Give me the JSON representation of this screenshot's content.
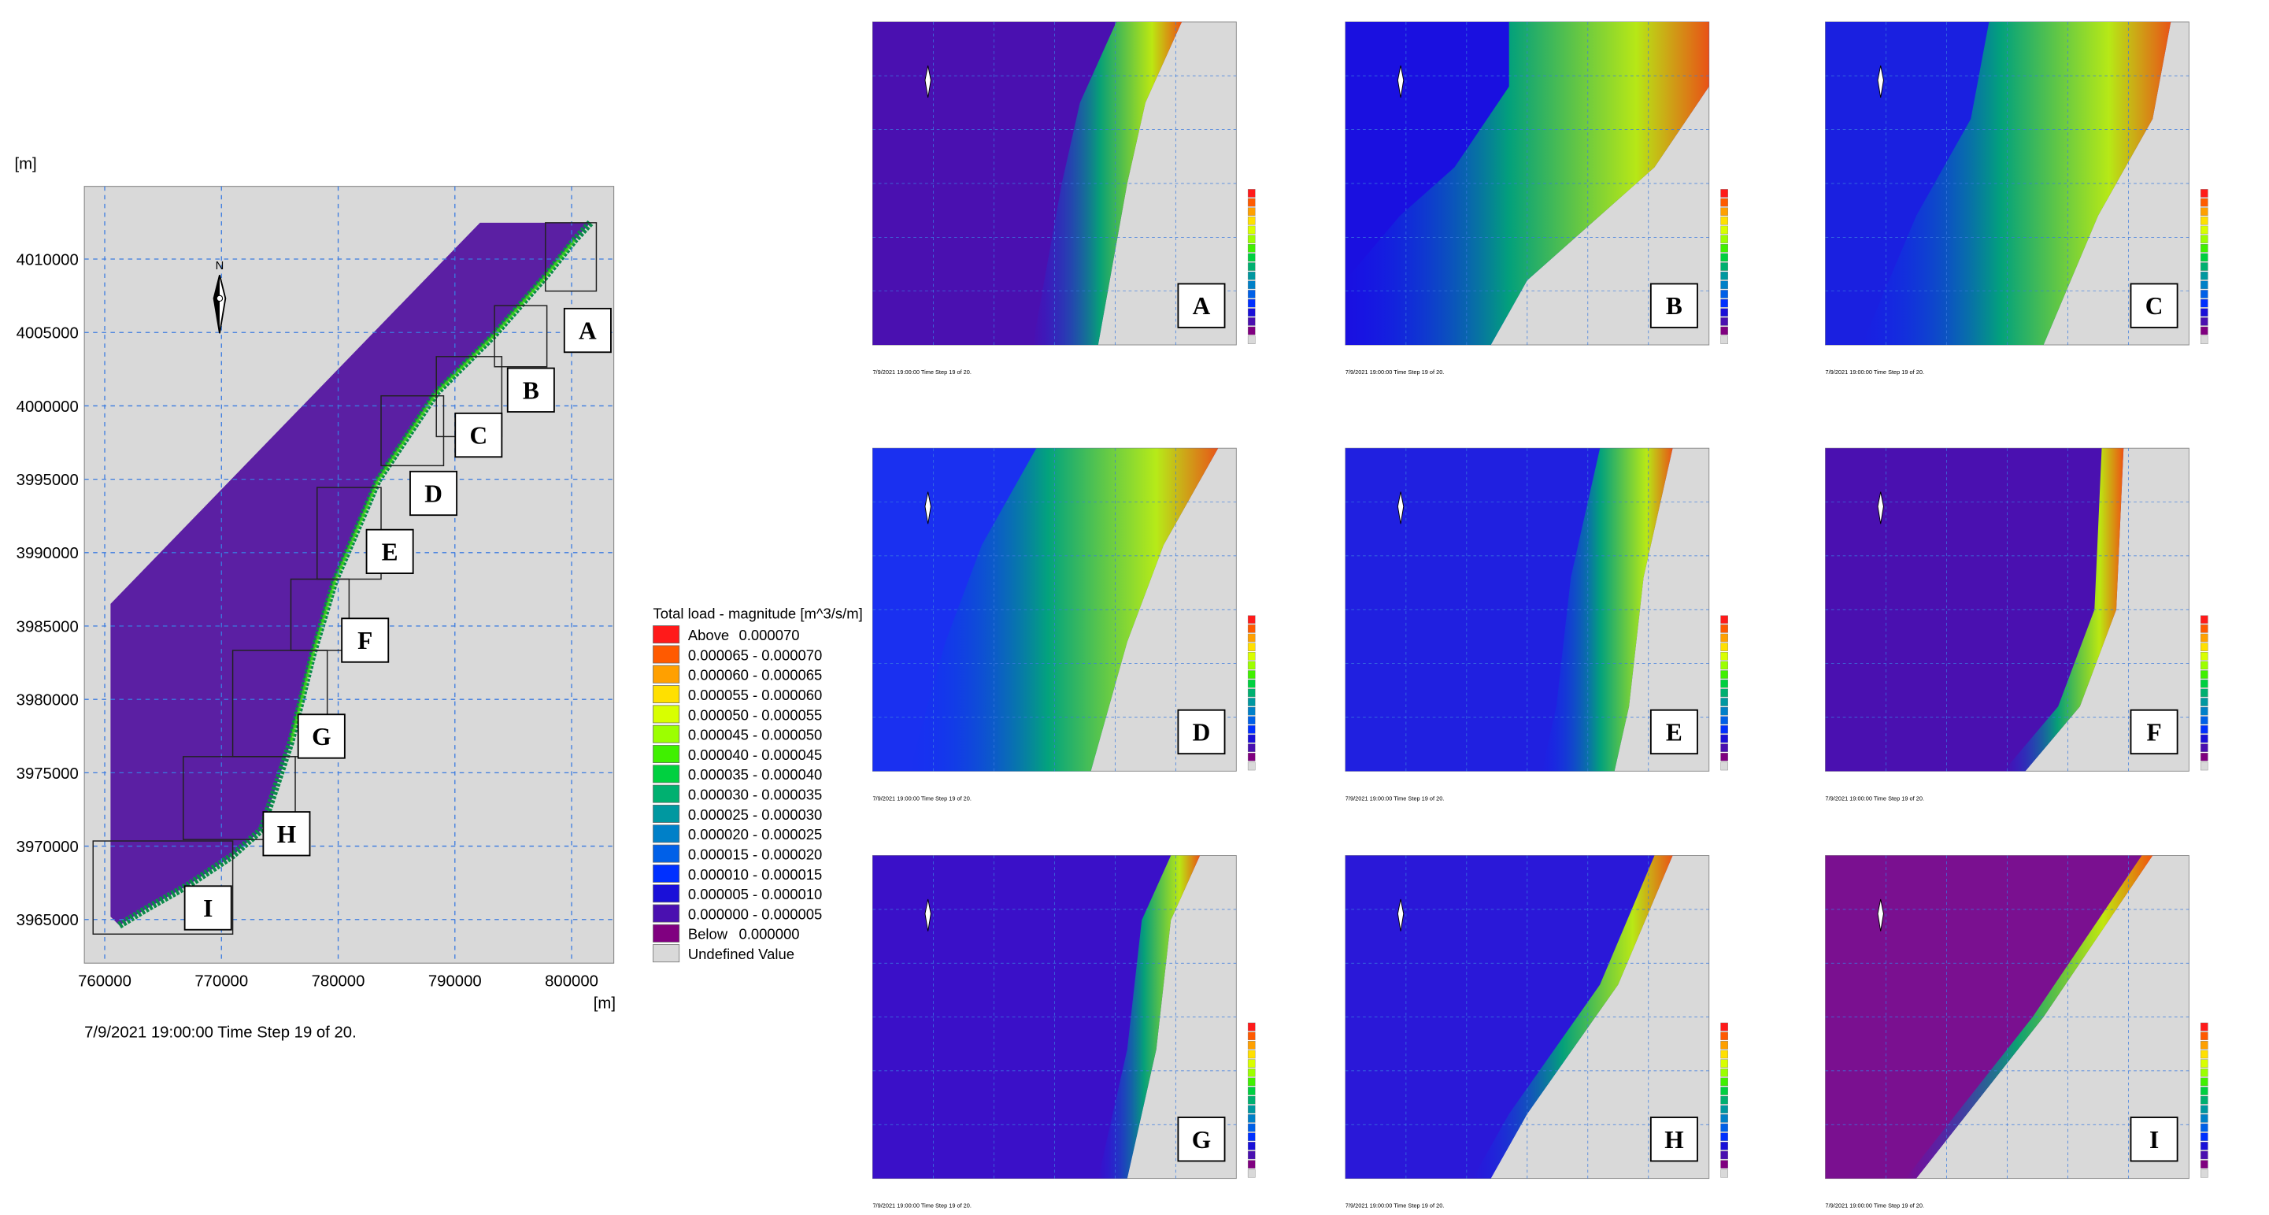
{
  "main_map": {
    "y_unit": "[m]",
    "x_unit": "[m]",
    "yticks": [
      4010000,
      4005000,
      4000000,
      3995000,
      3990000,
      3985000,
      3980000,
      3975000,
      3970000,
      3965000
    ],
    "xticks": [
      760000,
      770000,
      780000,
      790000,
      800000
    ],
    "boxes": [
      "A",
      "B",
      "C",
      "D",
      "E",
      "F",
      "G",
      "H",
      "I"
    ],
    "timestamp": "7/9/2021 19:00:00  Time Step 19 of 20."
  },
  "legend": {
    "title": "Total load - magnitude [m^3/s/m]",
    "items": [
      {
        "text": "Above",
        "value": "0.000070",
        "color": "#ff1a1a"
      },
      {
        "text": "0.000065 - 0.000070",
        "color": "#ff5a00"
      },
      {
        "text": "0.000060 - 0.000065",
        "color": "#ffa000"
      },
      {
        "text": "0.000055 - 0.000060",
        "color": "#ffe000"
      },
      {
        "text": "0.000050 - 0.000055",
        "color": "#d8ff00"
      },
      {
        "text": "0.000045 - 0.000050",
        "color": "#9cff00"
      },
      {
        "text": "0.000040 - 0.000045",
        "color": "#40f000"
      },
      {
        "text": "0.000035 - 0.000040",
        "color": "#00d040"
      },
      {
        "text": "0.000030 - 0.000035",
        "color": "#00b070"
      },
      {
        "text": "0.000025 - 0.000030",
        "color": "#0098a0"
      },
      {
        "text": "0.000020 - 0.000025",
        "color": "#0080c8"
      },
      {
        "text": "0.000015 - 0.000020",
        "color": "#0060e8"
      },
      {
        "text": "0.000010 - 0.000015",
        "color": "#0030ff"
      },
      {
        "text": "0.000005 - 0.000010",
        "color": "#1a10d8"
      },
      {
        "text": "0.000000 - 0.000005",
        "color": "#4a10b0"
      },
      {
        "text": "Below",
        "value": "0.000000",
        "color": "#800080"
      },
      {
        "text": "Undefined Value",
        "color": "#d9d9d9"
      }
    ]
  },
  "panels": [
    {
      "label": "A"
    },
    {
      "label": "B"
    },
    {
      "label": "C"
    },
    {
      "label": "D"
    },
    {
      "label": "E"
    },
    {
      "label": "F"
    },
    {
      "label": "G"
    },
    {
      "label": "H"
    },
    {
      "label": "I"
    }
  ]
}
